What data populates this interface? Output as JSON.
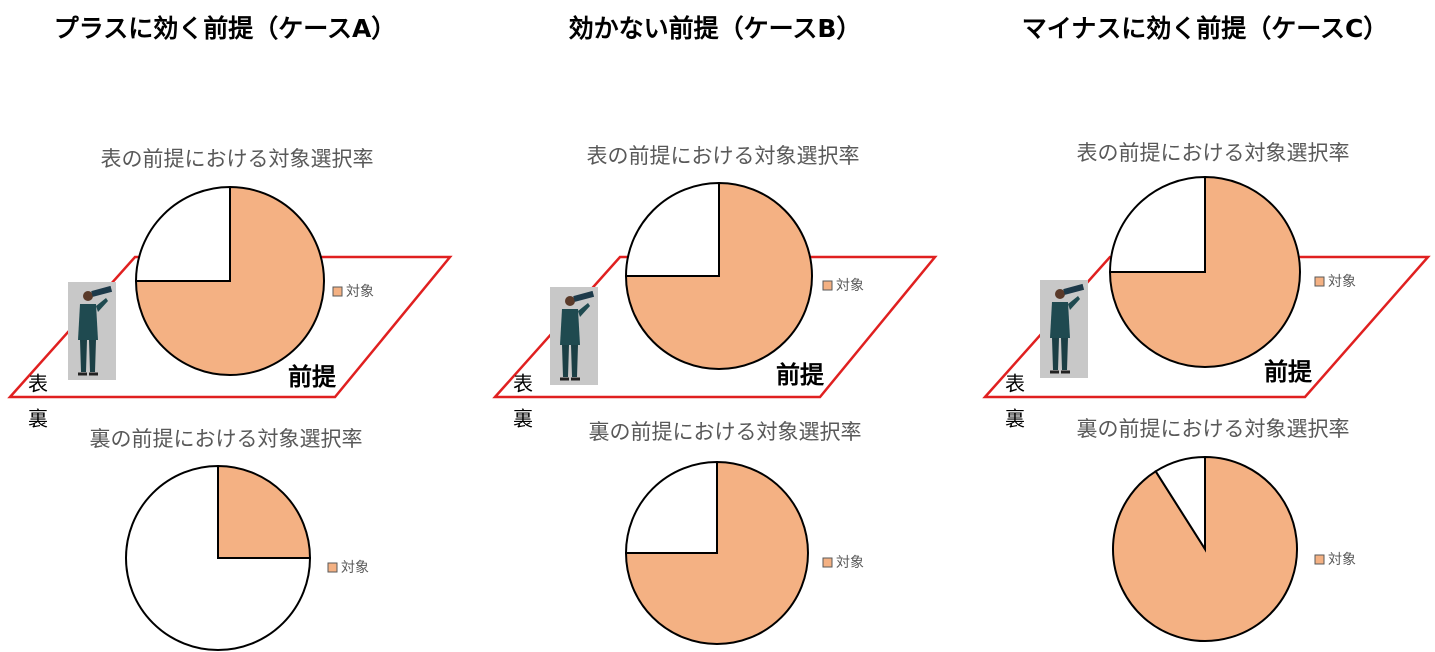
{
  "columns": [
    {
      "title": "プラスに効く前提（ケースA）",
      "front": "表",
      "back": "裏",
      "premise": "前提"
    },
    {
      "title": "効かない前提（ケースB）",
      "front": "表",
      "back": "裏",
      "premise": "前提"
    },
    {
      "title": "マイナスに効く前提（ケースC）",
      "front": "表",
      "back": "裏",
      "premise": "前提"
    }
  ],
  "chart_data": [
    {
      "type": "pie",
      "title": "表の前提における対象選択率",
      "categories": [
        "対象",
        null
      ],
      "values": [
        75,
        25
      ],
      "colors": [
        "#f4b183",
        "#ffffff"
      ]
    },
    {
      "type": "pie",
      "title": "裏の前提における対象選択率",
      "categories": [
        "対象",
        null
      ],
      "values": [
        25,
        75
      ],
      "colors": [
        "#f4b183",
        "#ffffff"
      ]
    },
    {
      "type": "pie",
      "title": "表の前提における対象選択率",
      "categories": [
        "対象",
        null
      ],
      "values": [
        75,
        25
      ],
      "colors": [
        "#f4b183",
        "#ffffff"
      ]
    },
    {
      "type": "pie",
      "title": "裏の前提における対象選択率",
      "categories": [
        "対象",
        null
      ],
      "values": [
        75,
        25
      ],
      "colors": [
        "#f4b183",
        "#ffffff"
      ]
    },
    {
      "type": "pie",
      "title": "表の前提における対象選択率",
      "categories": [
        "対象",
        null
      ],
      "values": [
        75,
        25
      ],
      "colors": [
        "#f4b183",
        "#ffffff"
      ]
    },
    {
      "type": "pie",
      "title": "裏の前提における対象選択率",
      "categories": [
        "対象",
        null
      ],
      "values": [
        91,
        9
      ],
      "colors": [
        "#f4b183",
        "#ffffff"
      ]
    }
  ]
}
